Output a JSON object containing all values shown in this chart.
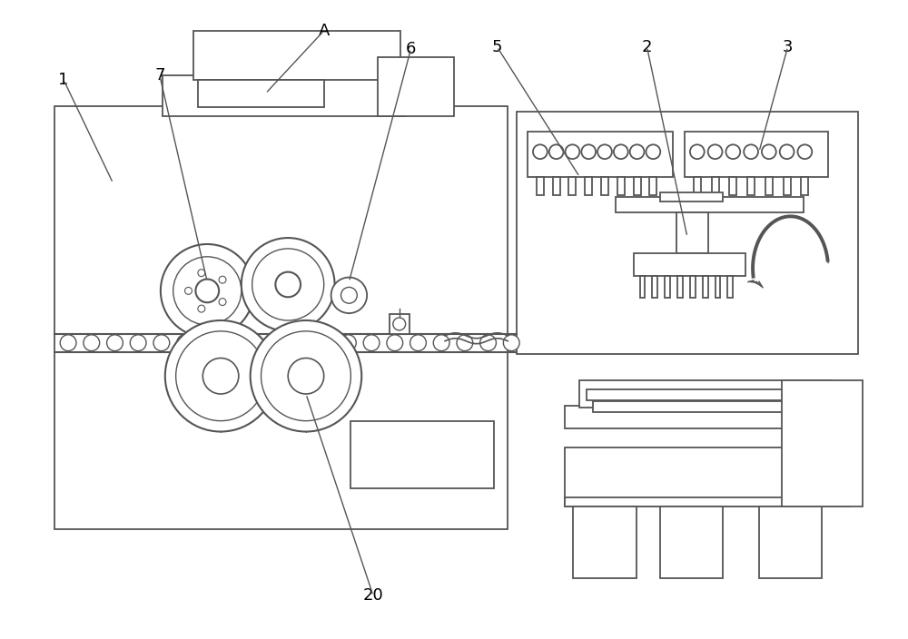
{
  "bg_color": "#ffffff",
  "lc": "#555555",
  "lc2": "#888888"
}
